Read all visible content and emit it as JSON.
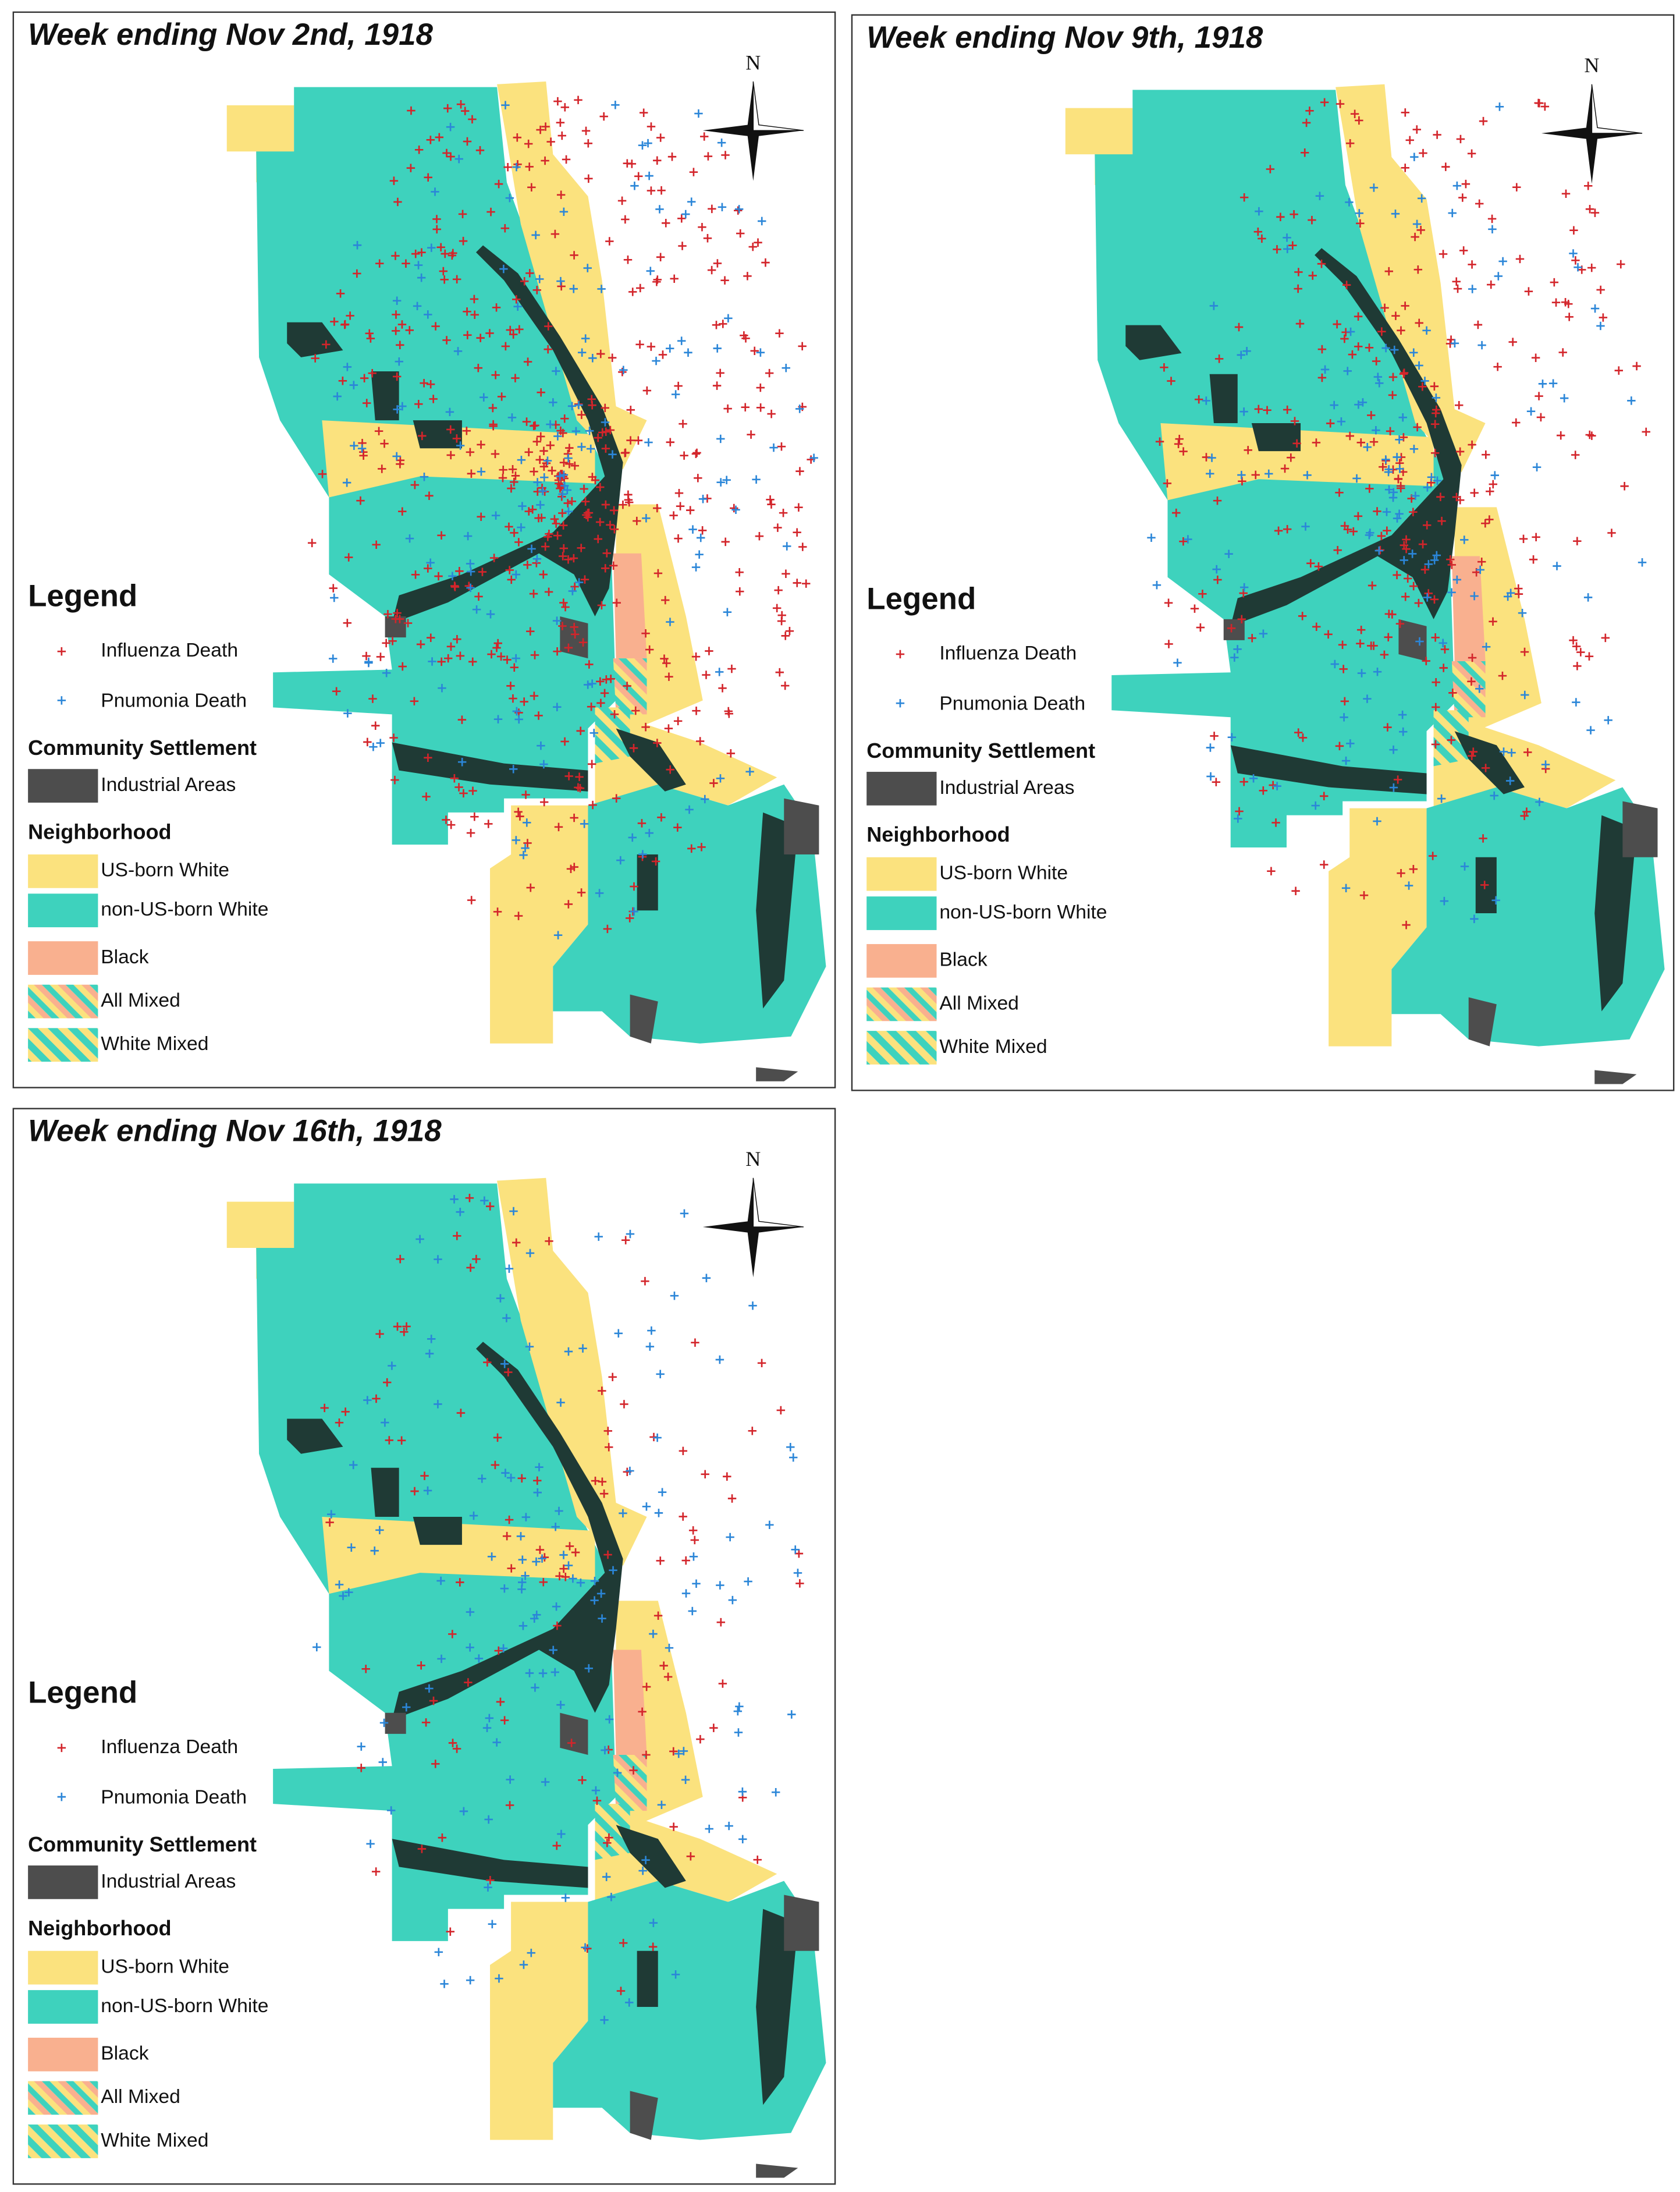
{
  "panels": [
    {
      "title": "Week ending Nov 2nd, 1918",
      "compass": "N",
      "legend": {
        "title": "Legend",
        "deaths": [
          "Influenza Death",
          "Pnumonia Death"
        ],
        "community_title": "Community Settlement",
        "industrial": "Industrial Areas",
        "neighborhood_title": "Neighborhood",
        "neighborhoods": [
          "US-born White",
          "non-US-born White",
          "Black",
          "All Mixed",
          "White Mixed"
        ]
      }
    },
    {
      "title": "Week ending Nov 9th, 1918",
      "compass": "N",
      "legend": {
        "title": "Legend",
        "deaths": [
          "Influenza Death",
          "Pnumonia Death"
        ],
        "community_title": "Community Settlement",
        "industrial": "Industrial Areas",
        "neighborhood_title": "Neighborhood",
        "neighborhoods": [
          "US-born White",
          "non-US-born White",
          "Black",
          "All Mixed",
          "White Mixed"
        ]
      }
    },
    {
      "title": "Week ending Nov 16th, 1918",
      "compass": "N",
      "legend": {
        "title": "Legend",
        "deaths": [
          "Influenza Death",
          "Pnumonia Death"
        ],
        "community_title": "Community Settlement",
        "industrial": "Industrial Areas",
        "neighborhood_title": "Neighborhood",
        "neighborhoods": [
          "US-born White",
          "non-US-born White",
          "Black",
          "All Mixed",
          "White Mixed"
        ]
      }
    }
  ]
}
